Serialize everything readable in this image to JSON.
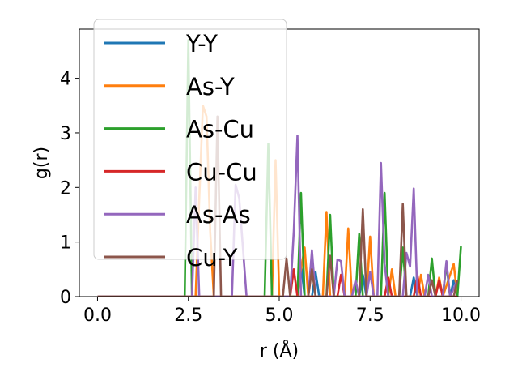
{
  "chart_data": {
    "type": "line",
    "xlabel": "r (Å)",
    "ylabel": "g(r)",
    "xlim": [
      -0.5,
      10.5
    ],
    "ylim": [
      0,
      4.9
    ],
    "xticks": [
      0.0,
      2.5,
      5.0,
      7.5,
      10.0
    ],
    "xtick_labels": [
      "0.0",
      "2.5",
      "5.0",
      "7.5",
      "10.0"
    ],
    "yticks": [
      0,
      1,
      2,
      3,
      4
    ],
    "ytick_labels": [
      "0",
      "1",
      "2",
      "3",
      "4"
    ],
    "grid": false,
    "legend_position": "upper-left",
    "series": [
      {
        "name": "Y-Y",
        "color": "#1f77b4",
        "x": [
          0.0,
          5.2,
          5.5,
          5.6,
          5.7,
          5.9,
          6.0,
          6.1,
          7.2,
          7.3,
          7.4,
          8.6,
          8.7,
          8.8,
          9.7,
          9.8,
          9.9
        ],
        "y": [
          0,
          0,
          0,
          0.6,
          0,
          0,
          0.45,
          0,
          0,
          0.4,
          0,
          0,
          0.35,
          0,
          0,
          0.3,
          0
        ]
      },
      {
        "name": "As-Y",
        "color": "#ff7f0e",
        "x": [
          0.0,
          2.7,
          2.8,
          2.9,
          3.0,
          3.1,
          3.2,
          4.8,
          4.9,
          5.0,
          5.5,
          5.6,
          5.7,
          5.8,
          6.2,
          6.3,
          6.4,
          6.8,
          6.9,
          7.0,
          7.4,
          7.5,
          7.6,
          8.0,
          8.1,
          8.2,
          8.8,
          8.9,
          9.0,
          9.3,
          9.4,
          9.5,
          9.8,
          9.9
        ],
        "y": [
          0,
          0,
          1.8,
          3.5,
          3.3,
          1.2,
          0,
          0,
          2.5,
          0,
          0,
          0.5,
          0.9,
          0,
          0,
          1.55,
          0,
          0,
          1.25,
          0,
          0,
          1.1,
          0,
          0,
          0.5,
          0,
          0,
          0.4,
          0,
          0,
          0.35,
          0,
          0.6,
          0
        ]
      },
      {
        "name": "As-Cu",
        "color": "#2ca02c",
        "x": [
          0.0,
          2.4,
          2.5,
          2.6,
          4.6,
          4.7,
          4.8,
          5.5,
          5.6,
          5.7,
          6.3,
          6.4,
          6.5,
          7.1,
          7.2,
          7.3,
          7.8,
          7.9,
          8.0,
          8.3,
          8.4,
          8.5,
          9.1,
          9.2,
          9.3,
          9.5,
          9.6,
          9.7,
          9.8,
          9.9,
          10.0
        ],
        "y": [
          0,
          0,
          4.7,
          0,
          0,
          2.8,
          0,
          0,
          1.9,
          0,
          0,
          1.5,
          0,
          0,
          1.15,
          0,
          0,
          1.9,
          0,
          0,
          0.9,
          0,
          0,
          0.7,
          0,
          0,
          0.6,
          0,
          0,
          0,
          0.92
        ]
      },
      {
        "name": "Cu-Cu",
        "color": "#d62728",
        "x": [
          0.0,
          5.3,
          5.4,
          5.5,
          6.6,
          6.7,
          6.8,
          7.9,
          8.0,
          8.1,
          8.7,
          8.8,
          8.9,
          9.3,
          9.4,
          9.5,
          9.9
        ],
        "y": [
          0,
          0,
          0.5,
          0,
          0,
          0.4,
          0,
          0,
          0.35,
          0,
          0,
          0.4,
          0,
          0,
          0.3,
          0,
          0
        ]
      },
      {
        "name": "As-As",
        "color": "#9467bd",
        "x": [
          0.0,
          2.6,
          2.7,
          2.8,
          3.7,
          3.8,
          3.9,
          4.1,
          5.3,
          5.4,
          5.5,
          5.6,
          5.8,
          5.9,
          6.0,
          6.1,
          6.5,
          6.6,
          6.7,
          6.8,
          7.0,
          7.1,
          7.2,
          7.4,
          7.5,
          7.6,
          7.7,
          7.8,
          7.9,
          8.0,
          8.4,
          8.5,
          8.6,
          8.7,
          8.8,
          9.0,
          9.1,
          9.2,
          9.5,
          9.6,
          9.7,
          9.9
        ],
        "y": [
          0,
          0,
          2.0,
          0,
          0,
          2.05,
          1.8,
          0,
          0,
          1.2,
          2.95,
          0,
          0,
          0.85,
          0,
          0,
          0,
          0.68,
          0.65,
          0,
          0,
          0.3,
          0,
          0,
          0.45,
          0,
          0,
          2.45,
          0.6,
          0,
          0,
          0.8,
          0.55,
          1.98,
          0,
          0,
          0.4,
          0,
          0,
          0.65,
          0,
          0.3
        ]
      },
      {
        "name": "Cu-Y",
        "color": "#8c564b",
        "x": [
          0.0,
          3.2,
          3.3,
          3.4,
          5.1,
          5.2,
          5.3,
          5.8,
          5.9,
          6.0,
          6.3,
          6.4,
          6.5,
          7.2,
          7.3,
          7.4,
          8.3,
          8.4,
          8.5,
          9.1,
          9.2,
          9.3,
          9.8,
          9.9
        ],
        "y": [
          0,
          0,
          3.3,
          0,
          0,
          0.7,
          0,
          0,
          0.5,
          0,
          0,
          0.75,
          0,
          0,
          1.6,
          0,
          0,
          1.7,
          0,
          0,
          0.3,
          0,
          0,
          0.3
        ]
      }
    ]
  }
}
